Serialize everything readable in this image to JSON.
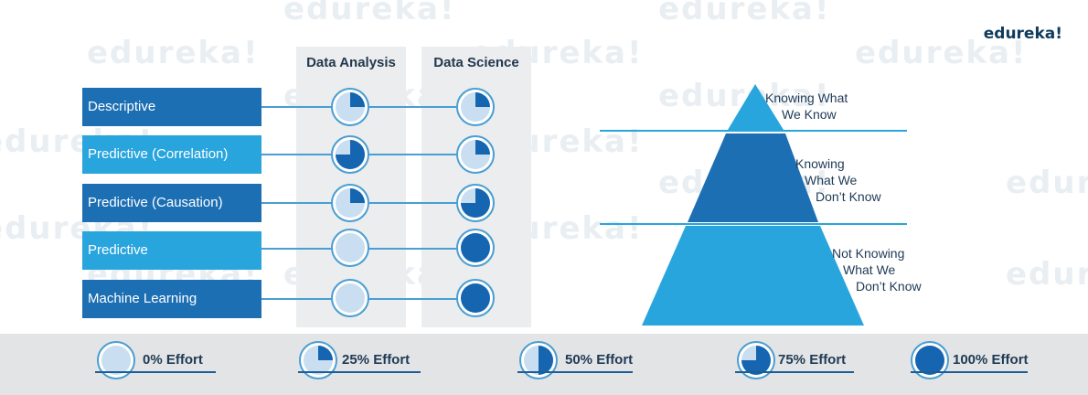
{
  "brand": "edureka!",
  "watermark": "edureka!",
  "columns": [
    "Data Analysis",
    "Data Science"
  ],
  "rows": [
    {
      "label": "Descriptive",
      "style": "dark",
      "analysis_effort": 25,
      "science_effort": 25
    },
    {
      "label": "Predictive (Correlation)",
      "style": "light",
      "analysis_effort": 75,
      "science_effort": 25
    },
    {
      "label": "Predictive (Causation)",
      "style": "dark",
      "analysis_effort": 25,
      "science_effort": 75
    },
    {
      "label": "Predictive",
      "style": "light",
      "analysis_effort": 0,
      "science_effort": 100
    },
    {
      "label": "Machine Learning",
      "style": "dark",
      "analysis_effort": 0,
      "science_effort": 100
    }
  ],
  "legend": [
    {
      "label": "0% Effort",
      "effort": 0
    },
    {
      "label": "25% Effort",
      "effort": 25
    },
    {
      "label": "50% Effort",
      "effort": 50
    },
    {
      "label": "75% Effort",
      "effort": 75
    },
    {
      "label": "100% Effort",
      "effort": 100
    }
  ],
  "pyramid": {
    "levels": [
      {
        "lines": [
          "Knowing What",
          "We Know"
        ],
        "color": "#29a5de"
      },
      {
        "lines": [
          "Knowing",
          "What We",
          "Don’t Know"
        ],
        "color": "#1d6fb4"
      },
      {
        "lines": [
          "Not Knowing",
          "What We",
          "Don’t Know"
        ],
        "color": "#29a5de"
      }
    ]
  },
  "colors": {
    "dark_blue": "#1d6fb4",
    "light_blue": "#29a5de",
    "circle_fill": "#c9def0",
    "circle_ring": "#4a9ed3",
    "pie_fill": "#1565b0"
  }
}
